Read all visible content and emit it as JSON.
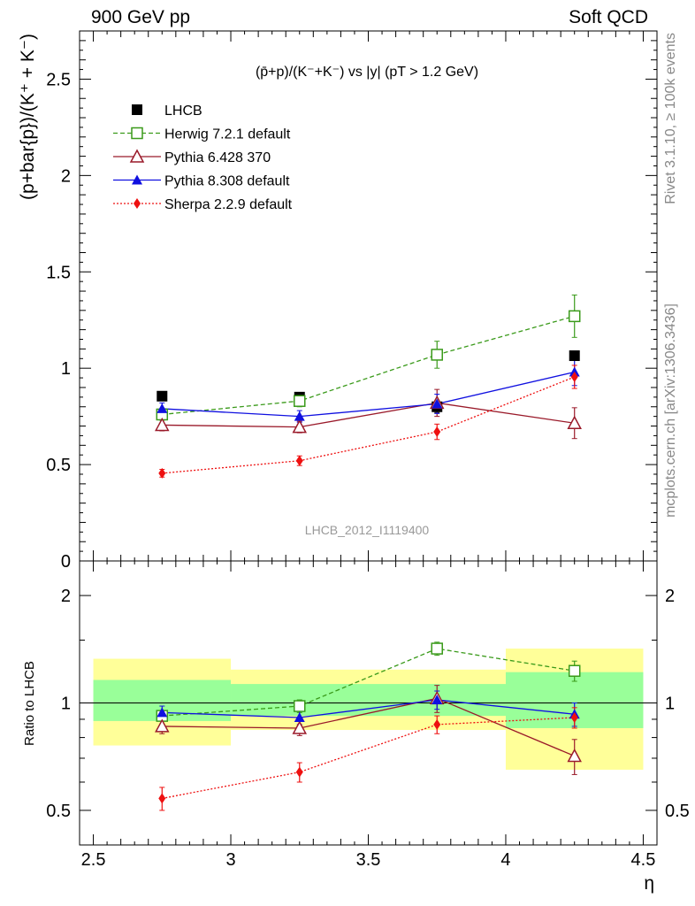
{
  "header": {
    "left": "900 GeV pp",
    "right": "Soft QCD"
  },
  "side_text": {
    "rivet": "Rivet 3.1.10, ≥ 100k events",
    "mcplots": "mcplots.cern.ch [arXiv:1306.3436]"
  },
  "chart_data": [
    {
      "type": "scatter",
      "title": "(p̄+p)/(K⁻+K⁻) vs |y| (pT > 1.2 GeV)",
      "ylabel": "(p+bar{p})/(K⁺ + K⁻)",
      "watermark": "LHCB_2012_I1119400",
      "ylim": [
        0,
        2.75
      ],
      "y_ticks": [
        "0",
        "0.5",
        "1",
        "1.5",
        "2",
        "2.5"
      ],
      "legend_position": "top-left",
      "x": [
        2.75,
        3.25,
        3.75,
        4.25
      ],
      "series": [
        {
          "name": "LHCB",
          "color": "#000000",
          "marker": "square-filled",
          "line": "none",
          "values": [
            0.855,
            0.85,
            0.8,
            1.065
          ],
          "errors": [
            0.02,
            0.02,
            0.03,
            0.02
          ]
        },
        {
          "name": "Herwig 7.2.1 default",
          "color": "#3a9a1a",
          "marker": "square-open",
          "line": "dashed",
          "values": [
            0.76,
            0.83,
            1.07,
            1.27
          ],
          "errors": [
            0.03,
            0.03,
            0.07,
            0.11
          ]
        },
        {
          "name": "Pythia 6.428 370",
          "color": "#9a1a2a",
          "marker": "triangle-open",
          "line": "solid",
          "values": [
            0.705,
            0.695,
            0.82,
            0.715
          ],
          "errors": [
            0.03,
            0.03,
            0.07,
            0.08
          ]
        },
        {
          "name": "Pythia 8.308 default",
          "color": "#1010e0",
          "marker": "triangle-filled",
          "line": "solid",
          "values": [
            0.79,
            0.75,
            0.815,
            0.98
          ],
          "errors": [
            0.03,
            0.03,
            0.05,
            0.07
          ]
        },
        {
          "name": "Sherpa 2.2.9 default",
          "color": "#ee1010",
          "marker": "diamond-filled",
          "line": "dotted",
          "values": [
            0.455,
            0.52,
            0.67,
            0.955
          ],
          "errors": [
            0.02,
            0.025,
            0.04,
            0.06
          ]
        }
      ]
    },
    {
      "type": "scatter",
      "ylabel": "Ratio to LHCB",
      "xlabel": "η",
      "xlim": [
        2.45,
        4.55
      ],
      "x_ticks": [
        "2.5",
        "3",
        "3.5",
        "4",
        "4.5"
      ],
      "y_ticks": [
        "0.5",
        "1",
        "2"
      ],
      "y_scale": "log",
      "ylim": [
        0.4,
        2.5
      ],
      "x": [
        2.75,
        3.25,
        3.75,
        4.25
      ],
      "bands": {
        "yellow": {
          "color": "#ffff99",
          "bins": [
            [
              2.5,
              3.0,
              0.76,
              1.33
            ],
            [
              3.0,
              4.0,
              0.84,
              1.24
            ],
            [
              4.0,
              4.5,
              0.65,
              1.42
            ]
          ]
        },
        "green": {
          "color": "#99ff99",
          "bins": [
            [
              2.5,
              3.0,
              0.89,
              1.16
            ],
            [
              3.0,
              4.0,
              0.92,
              1.13
            ],
            [
              4.0,
              4.5,
              0.85,
              1.22
            ]
          ]
        }
      },
      "series": [
        {
          "name": "Herwig 7.2.1 default",
          "color": "#3a9a1a",
          "marker": "square-open",
          "line": "dashed",
          "values": [
            0.92,
            0.98,
            1.42,
            1.23
          ],
          "errors": [
            0.03,
            0.04,
            0.06,
            0.08
          ]
        },
        {
          "name": "Pythia 6.428 370",
          "color": "#9a1a2a",
          "marker": "triangle-open",
          "line": "solid",
          "values": [
            0.86,
            0.85,
            1.03,
            0.71
          ],
          "errors": [
            0.04,
            0.04,
            0.09,
            0.08
          ]
        },
        {
          "name": "Pythia 8.308 default",
          "color": "#1010e0",
          "marker": "triangle-filled",
          "line": "solid",
          "values": [
            0.94,
            0.91,
            1.02,
            0.93
          ],
          "errors": [
            0.04,
            0.04,
            0.06,
            0.07
          ]
        },
        {
          "name": "Sherpa 2.2.9 default",
          "color": "#ee1010",
          "marker": "diamond-filled",
          "line": "dotted",
          "values": [
            0.54,
            0.64,
            0.87,
            0.91
          ],
          "errors": [
            0.04,
            0.04,
            0.05,
            0.06
          ]
        }
      ]
    }
  ]
}
